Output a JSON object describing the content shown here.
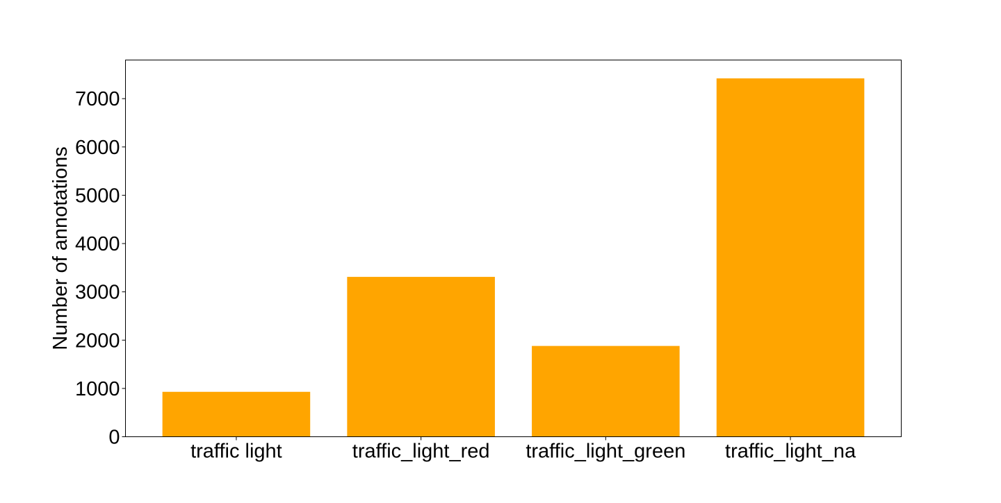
{
  "chart_data": {
    "type": "bar",
    "title": "",
    "xlabel": "",
    "ylabel": "Number of annotations",
    "categories": [
      "traffic light",
      "traffic_light_red",
      "traffic_light_green",
      "traffic_light_na"
    ],
    "values": [
      930,
      3310,
      1880,
      7420
    ],
    "ylim": [
      0,
      7800
    ],
    "yticks": [
      0,
      1000,
      2000,
      3000,
      4000,
      5000,
      6000,
      7000
    ],
    "bar_color": "#ffa500",
    "grid": false,
    "legend": "none"
  }
}
